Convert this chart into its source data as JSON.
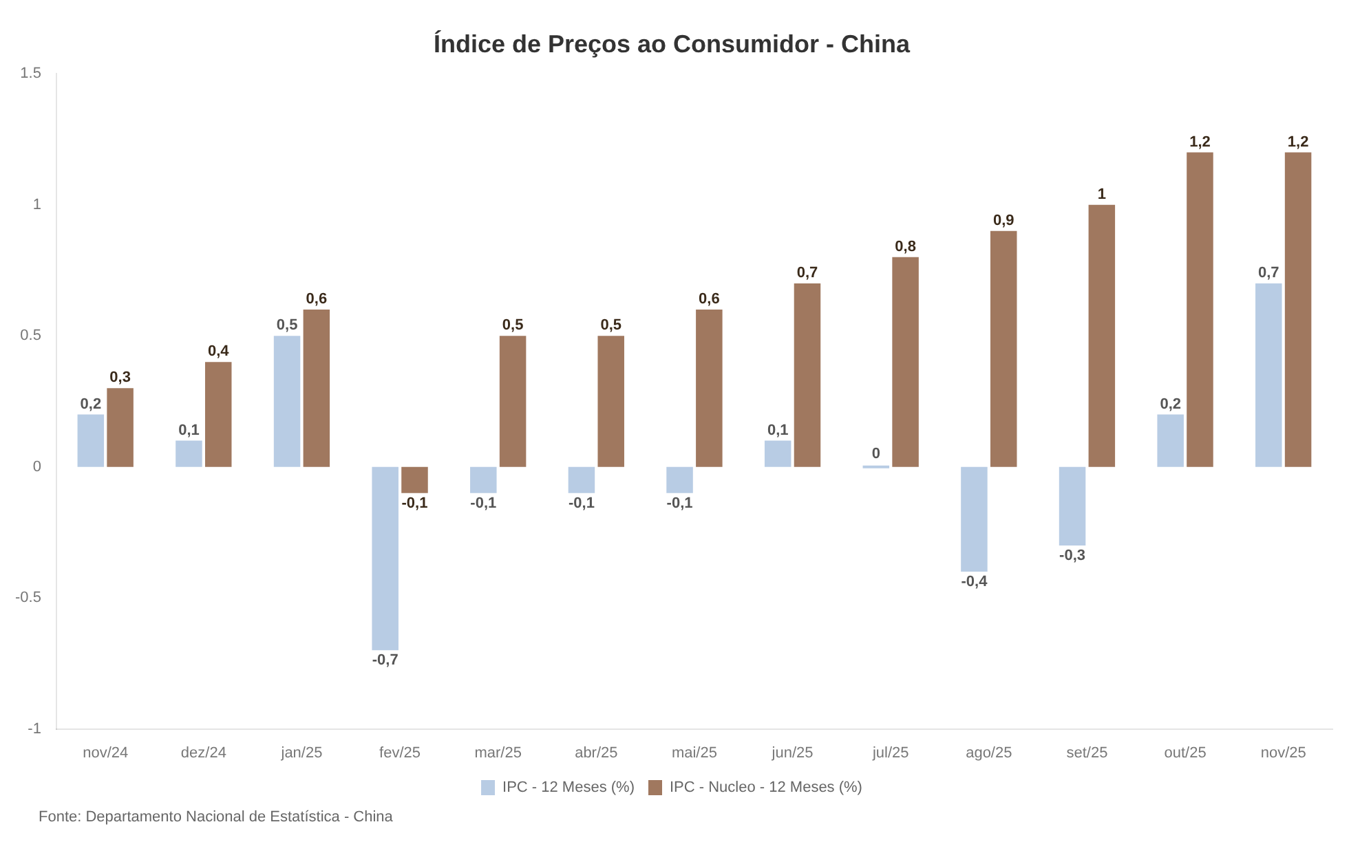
{
  "chart_data": {
    "type": "bar",
    "title": "Índice de Preços ao Consumidor - China",
    "categories": [
      "nov/24",
      "dez/24",
      "jan/25",
      "fev/25",
      "mar/25",
      "abr/25",
      "mai/25",
      "jun/25",
      "jul/25",
      "ago/25",
      "set/25",
      "out/25",
      "nov/25"
    ],
    "series": [
      {
        "name": "IPC - 12 Meses (%)",
        "color": "#b8cce4",
        "values": [
          0.2,
          0.1,
          0.5,
          -0.7,
          -0.1,
          -0.1,
          -0.1,
          0.1,
          0,
          -0.4,
          -0.3,
          0.2,
          0.7
        ],
        "value_labels": [
          "0,2",
          "0,1",
          "0,5",
          "-0,7",
          "-0,1",
          "-0,1",
          "-0,1",
          "0,1",
          "0",
          "-0,4",
          "-0,3",
          "0,2",
          "0,7"
        ]
      },
      {
        "name": "IPC - Nucleo - 12 Meses (%)",
        "color": "#a0785f",
        "values": [
          0.3,
          0.4,
          0.6,
          -0.1,
          0.5,
          0.5,
          0.6,
          0.7,
          0.8,
          0.9,
          1,
          1.2,
          1.2
        ],
        "value_labels": [
          "0,3",
          "0,4",
          "0,6",
          "-0,1",
          "0,5",
          "0,5",
          "0,6",
          "0,7",
          "0,8",
          "0,9",
          "1",
          "1,2",
          "1,2"
        ]
      }
    ],
    "ylim": [
      -1,
      1.5
    ],
    "yticks": [
      -1,
      -0.5,
      0,
      0.5,
      1,
      1.5
    ],
    "grid": false,
    "legend": "bottom",
    "annotations": [
      "Fonte: Departamento Nacional de Estatística - China"
    ]
  }
}
